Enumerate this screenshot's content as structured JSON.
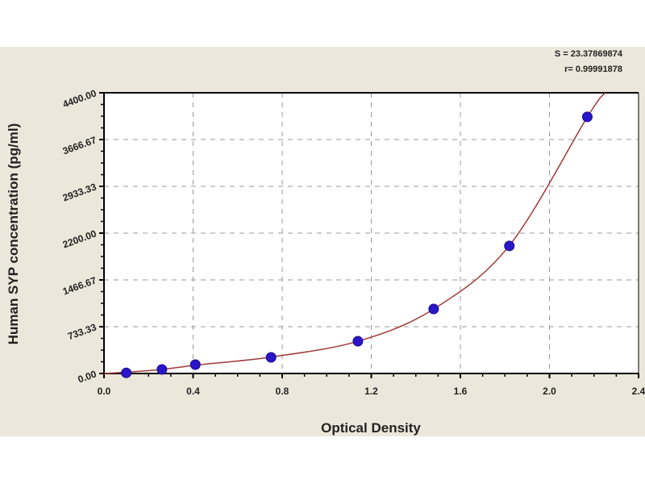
{
  "chart_data": {
    "type": "scatter",
    "title": "",
    "xlabel": "Optical Density",
    "ylabel": "Human SYP concentration (pg/ml)",
    "xlim": [
      0,
      2.4
    ],
    "ylim": [
      0,
      4400
    ],
    "x_ticks": [
      "0.0",
      "0.4",
      "0.8",
      "1.2",
      "1.6",
      "2.0",
      "2.4"
    ],
    "x_tick_values": [
      0,
      0.4,
      0.8,
      1.2,
      1.6,
      2.0,
      2.4
    ],
    "y_ticks": [
      "0.00",
      "733.33",
      "1466.67",
      "2200.00",
      "2933.33",
      "3666.67",
      "4400.00"
    ],
    "y_tick_values": [
      0,
      733.33,
      1466.67,
      2200,
      2933.33,
      3666.67,
      4400
    ],
    "grid": true,
    "stats": {
      "s": "S = 23.37869874",
      "r": "r= 0.99991878"
    },
    "points": {
      "x": [
        0.1,
        0.26,
        0.41,
        0.75,
        1.14,
        1.48,
        1.82,
        2.17
      ],
      "y": [
        10,
        63,
        139,
        253,
        506,
        1011,
        2000,
        4022
      ]
    },
    "fit_curve": {
      "x": [
        0.0,
        0.1,
        0.26,
        0.41,
        0.75,
        1.14,
        1.48,
        1.82,
        2.17,
        2.25
      ],
      "y": [
        0,
        20,
        63,
        130,
        258,
        505,
        1010,
        2005,
        4020,
        4400
      ]
    },
    "colors": {
      "background": "#ebe7da",
      "plot": "#ffffff",
      "point": "#2a16c8",
      "curve": "#a03a3a",
      "grid": "#999999"
    }
  }
}
